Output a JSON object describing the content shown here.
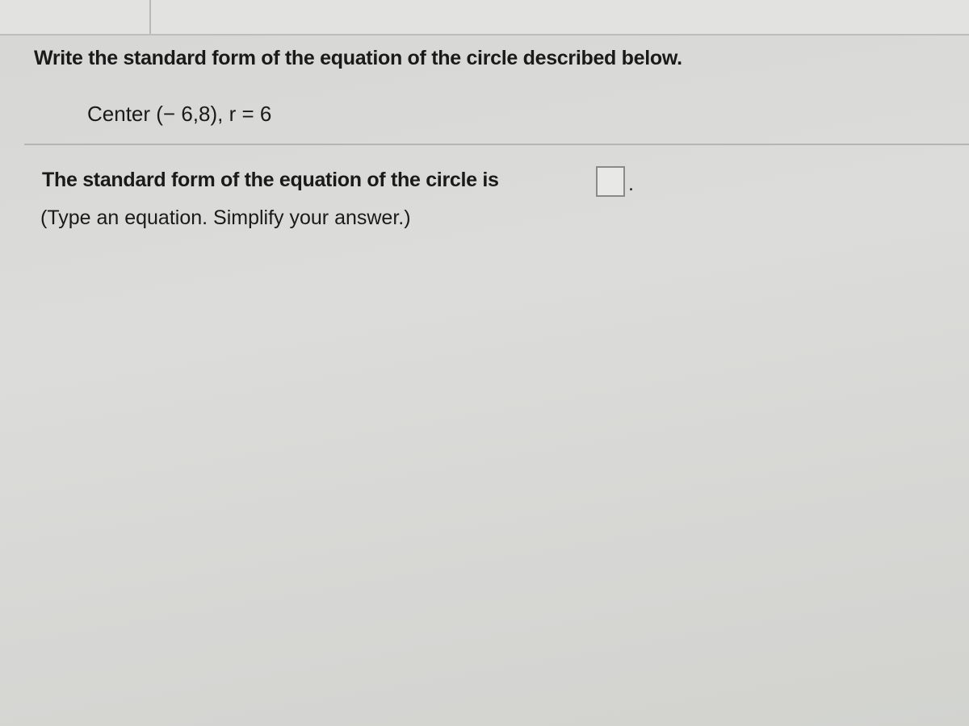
{
  "question": {
    "instruction": "Write the standard form of the equation of the circle described below.",
    "given": "Center (− 6,8),  r = 6"
  },
  "answer": {
    "prompt": "The standard form of the equation of the circle is",
    "suffix": ".",
    "hint": "(Type an equation. Simplify your answer.)"
  }
}
